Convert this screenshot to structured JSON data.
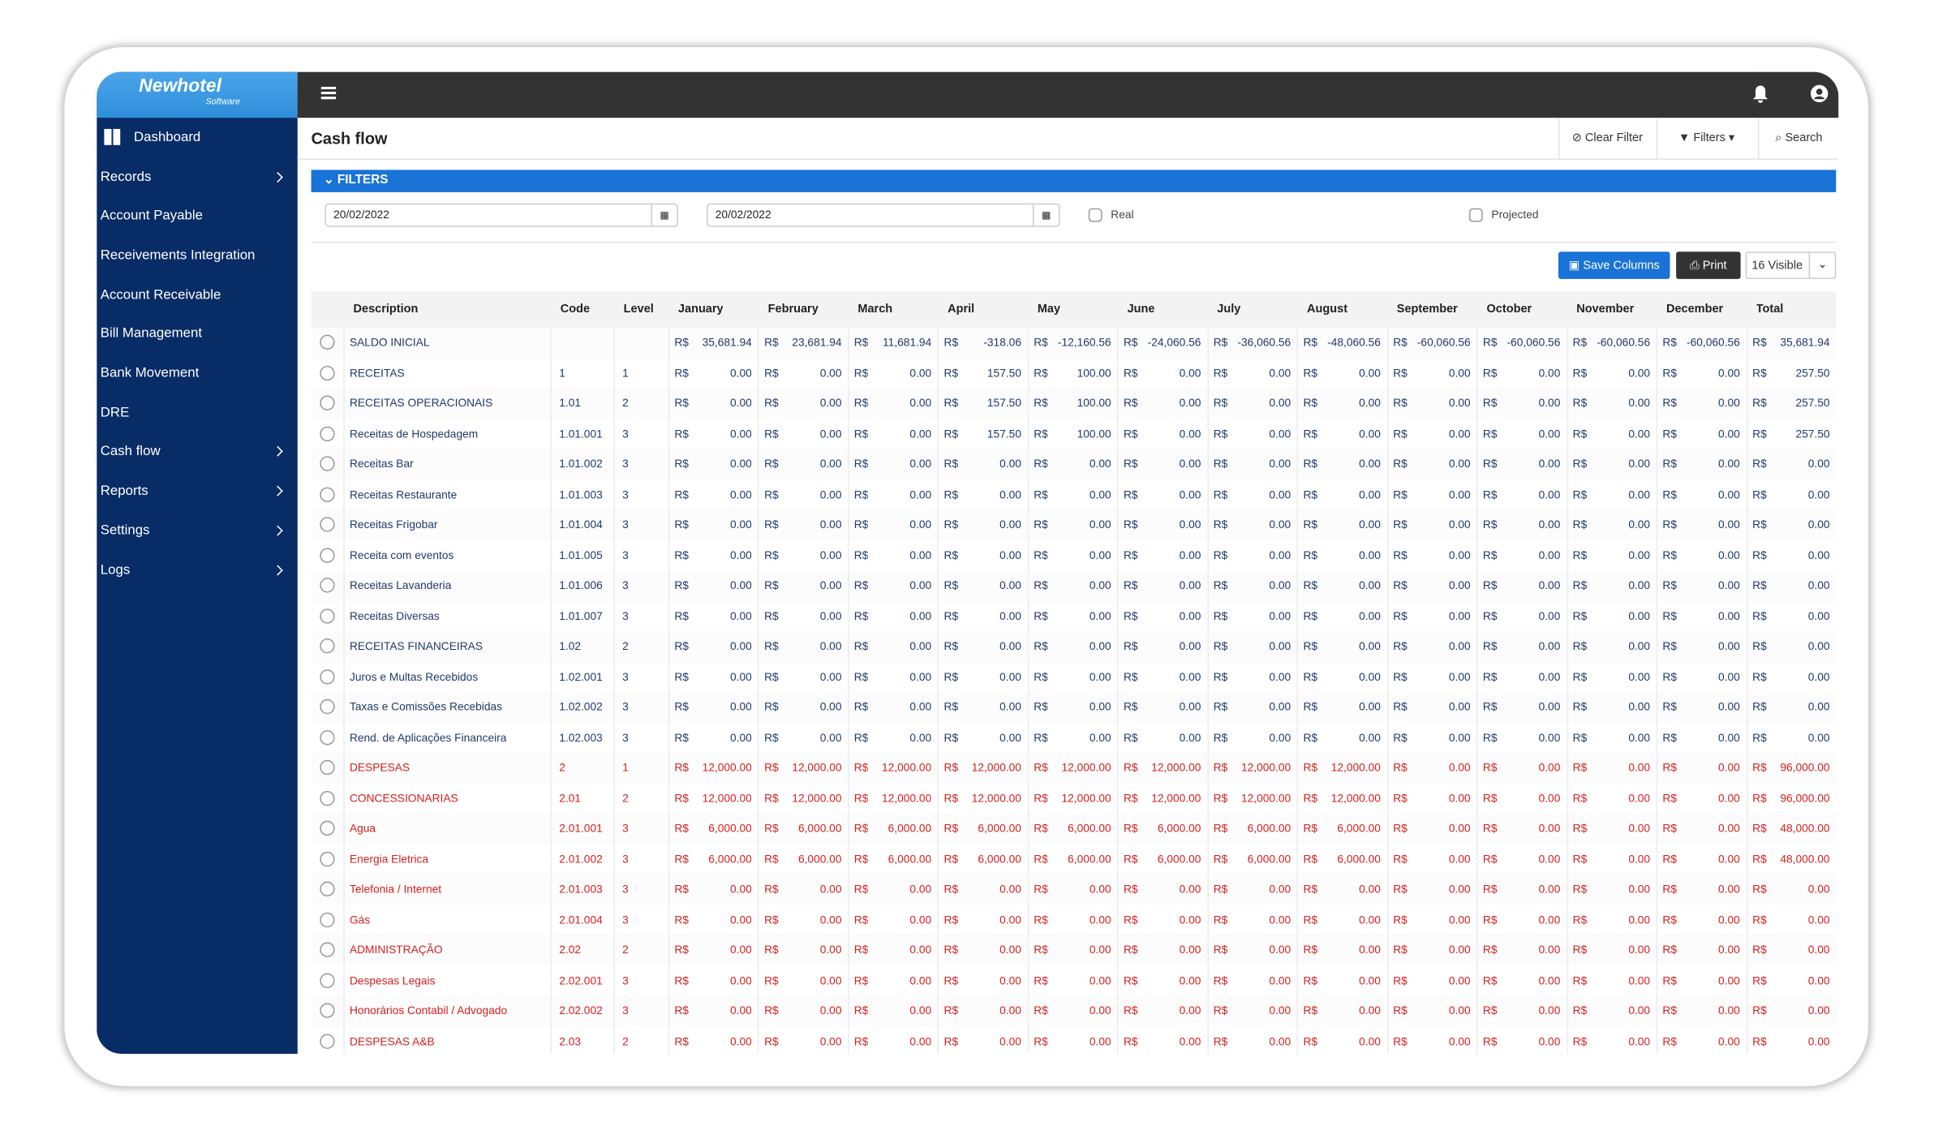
{
  "app": {
    "logo": "Newhotel",
    "logo_sub": "Software"
  },
  "sidebar": [
    "Dashboard",
    "Records",
    "Account Payable",
    "Receivements Integration",
    "Account Receivable",
    "Bill Management",
    "Bank Movement",
    "DRE",
    "Cash flow",
    "Reports",
    "Settings",
    "Logs"
  ],
  "header": {
    "title": "Cash flow",
    "buttons": [
      "Clear Filter",
      "Filters",
      "Search"
    ]
  },
  "filters": {
    "title": "FILTERS",
    "date_from": "20/02/2022",
    "date_to": "20/02/2022",
    "checkboxes": [
      "Real",
      "Projected"
    ]
  },
  "toolbar": {
    "save": "Save Columns",
    "print": "Print",
    "visible": "16 Visible"
  },
  "table": {
    "currency": "R$",
    "columns": [
      "Description",
      "Code",
      "Level",
      "January",
      "February",
      "March",
      "April",
      "May",
      "June",
      "July",
      "August",
      "September",
      "October",
      "November",
      "December",
      "Total"
    ],
    "rows": [
      {
        "description": "SALDO INICIAL",
        "code": null,
        "level": null,
        "values": [
          "35,681.94",
          "23,681.94",
          "11,681.94",
          "-318.06",
          "-12,160.56",
          "-24,060.56",
          "-36,060.56",
          "-48,060.56",
          "-60,060.56",
          "-60,060.56",
          "-60,060.56",
          "-60,060.56",
          "35,681.94"
        ]
      },
      {
        "description": "RECEITAS",
        "code": "1",
        "level": "1",
        "values": [
          "0.00",
          "0.00",
          "0.00",
          "157.50",
          "100.00",
          "0.00",
          "0.00",
          "0.00",
          "0.00",
          "0.00",
          "0.00",
          "0.00",
          "257.50"
        ]
      },
      {
        "description": "RECEITAS OPERACIONAIS",
        "code": "1.01",
        "level": "2",
        "values": [
          "0.00",
          "0.00",
          "0.00",
          "157.50",
          "100.00",
          "0.00",
          "0.00",
          "0.00",
          "0.00",
          "0.00",
          "0.00",
          "0.00",
          "257.50"
        ]
      },
      {
        "description": "Receitas de Hospedagem",
        "code": "1.01.001",
        "level": "3",
        "values": [
          "0.00",
          "0.00",
          "0.00",
          "157.50",
          "100.00",
          "0.00",
          "0.00",
          "0.00",
          "0.00",
          "0.00",
          "0.00",
          "0.00",
          "257.50"
        ]
      },
      {
        "description": "Receitas Bar",
        "code": "1.01.002",
        "level": "3",
        "values": [
          "0.00",
          "0.00",
          "0.00",
          "0.00",
          "0.00",
          "0.00",
          "0.00",
          "0.00",
          "0.00",
          "0.00",
          "0.00",
          "0.00",
          "0.00"
        ]
      },
      {
        "description": "Receitas Restaurante",
        "code": "1.01.003",
        "level": "3",
        "values": [
          "0.00",
          "0.00",
          "0.00",
          "0.00",
          "0.00",
          "0.00",
          "0.00",
          "0.00",
          "0.00",
          "0.00",
          "0.00",
          "0.00",
          "0.00"
        ]
      },
      {
        "description": "Receitas Frigobar",
        "code": "1.01.004",
        "level": "3",
        "values": [
          "0.00",
          "0.00",
          "0.00",
          "0.00",
          "0.00",
          "0.00",
          "0.00",
          "0.00",
          "0.00",
          "0.00",
          "0.00",
          "0.00",
          "0.00"
        ]
      },
      {
        "description": "Receita com eventos",
        "code": "1.01.005",
        "level": "3",
        "values": [
          "0.00",
          "0.00",
          "0.00",
          "0.00",
          "0.00",
          "0.00",
          "0.00",
          "0.00",
          "0.00",
          "0.00",
          "0.00",
          "0.00",
          "0.00"
        ]
      },
      {
        "description": "Receitas Lavanderia",
        "code": "1.01.006",
        "level": "3",
        "values": [
          "0.00",
          "0.00",
          "0.00",
          "0.00",
          "0.00",
          "0.00",
          "0.00",
          "0.00",
          "0.00",
          "0.00",
          "0.00",
          "0.00",
          "0.00"
        ]
      },
      {
        "description": "Receitas Diversas",
        "code": "1.01.007",
        "level": "3",
        "values": [
          "0.00",
          "0.00",
          "0.00",
          "0.00",
          "0.00",
          "0.00",
          "0.00",
          "0.00",
          "0.00",
          "0.00",
          "0.00",
          "0.00",
          "0.00"
        ]
      },
      {
        "description": "RECEITAS FINANCEIRAS",
        "code": "1.02",
        "level": "2",
        "values": [
          "0.00",
          "0.00",
          "0.00",
          "0.00",
          "0.00",
          "0.00",
          "0.00",
          "0.00",
          "0.00",
          "0.00",
          "0.00",
          "0.00",
          "0.00"
        ]
      },
      {
        "description": "Juros e Multas Recebidos",
        "code": "1.02.001",
        "level": "3",
        "values": [
          "0.00",
          "0.00",
          "0.00",
          "0.00",
          "0.00",
          "0.00",
          "0.00",
          "0.00",
          "0.00",
          "0.00",
          "0.00",
          "0.00",
          "0.00"
        ]
      },
      {
        "description": "Taxas e Comissões Recebidas",
        "code": "1.02.002",
        "level": "3",
        "values": [
          "0.00",
          "0.00",
          "0.00",
          "0.00",
          "0.00",
          "0.00",
          "0.00",
          "0.00",
          "0.00",
          "0.00",
          "0.00",
          "0.00",
          "0.00"
        ]
      },
      {
        "description": "Rend. de Aplicações Financeira",
        "code": "1.02.003",
        "level": "3",
        "values": [
          "0.00",
          "0.00",
          "0.00",
          "0.00",
          "0.00",
          "0.00",
          "0.00",
          "0.00",
          "0.00",
          "0.00",
          "0.00",
          "0.00",
          "0.00"
        ]
      },
      {
        "description": "DESPESAS",
        "code": "2",
        "level": "1",
        "values": [
          "12,000.00",
          "12,000.00",
          "12,000.00",
          "12,000.00",
          "12,000.00",
          "12,000.00",
          "12,000.00",
          "12,000.00",
          "0.00",
          "0.00",
          "0.00",
          "0.00",
          "96,000.00"
        ]
      },
      {
        "description": "CONCESSIONARIAS",
        "code": "2.01",
        "level": "2",
        "values": [
          "12,000.00",
          "12,000.00",
          "12,000.00",
          "12,000.00",
          "12,000.00",
          "12,000.00",
          "12,000.00",
          "12,000.00",
          "0.00",
          "0.00",
          "0.00",
          "0.00",
          "96,000.00"
        ]
      },
      {
        "description": "Agua",
        "code": "2.01.001",
        "level": "3",
        "values": [
          "6,000.00",
          "6,000.00",
          "6,000.00",
          "6,000.00",
          "6,000.00",
          "6,000.00",
          "6,000.00",
          "6,000.00",
          "0.00",
          "0.00",
          "0.00",
          "0.00",
          "48,000.00"
        ]
      },
      {
        "description": "Energia Eletrica",
        "code": "2.01.002",
        "level": "3",
        "values": [
          "6,000.00",
          "6,000.00",
          "6,000.00",
          "6,000.00",
          "6,000.00",
          "6,000.00",
          "6,000.00",
          "6,000.00",
          "0.00",
          "0.00",
          "0.00",
          "0.00",
          "48,000.00"
        ]
      },
      {
        "description": "Telefonia / Internet",
        "code": "2.01.003",
        "level": "3",
        "values": [
          "0.00",
          "0.00",
          "0.00",
          "0.00",
          "0.00",
          "0.00",
          "0.00",
          "0.00",
          "0.00",
          "0.00",
          "0.00",
          "0.00",
          "0.00"
        ]
      },
      {
        "description": "Gás",
        "code": "2.01.004",
        "level": "3",
        "values": [
          "0.00",
          "0.00",
          "0.00",
          "0.00",
          "0.00",
          "0.00",
          "0.00",
          "0.00",
          "0.00",
          "0.00",
          "0.00",
          "0.00",
          "0.00"
        ]
      },
      {
        "description": "ADMINISTRAÇÃO",
        "code": "2.02",
        "level": "2",
        "values": [
          "0.00",
          "0.00",
          "0.00",
          "0.00",
          "0.00",
          "0.00",
          "0.00",
          "0.00",
          "0.00",
          "0.00",
          "0.00",
          "0.00",
          "0.00"
        ]
      },
      {
        "description": "Despesas Legais",
        "code": "2.02.001",
        "level": "3",
        "values": [
          "0.00",
          "0.00",
          "0.00",
          "0.00",
          "0.00",
          "0.00",
          "0.00",
          "0.00",
          "0.00",
          "0.00",
          "0.00",
          "0.00",
          "0.00"
        ]
      },
      {
        "description": "Honorários Contabil / Advogado",
        "code": "2.02.002",
        "level": "3",
        "values": [
          "0.00",
          "0.00",
          "0.00",
          "0.00",
          "0.00",
          "0.00",
          "0.00",
          "0.00",
          "0.00",
          "0.00",
          "0.00",
          "0.00",
          "0.00"
        ]
      },
      {
        "description": "DESPESAS A&B",
        "code": "2.03",
        "level": "2",
        "values": [
          "0.00",
          "0.00",
          "0.00",
          "0.00",
          "0.00",
          "0.00",
          "0.00",
          "0.00",
          "0.00",
          "0.00",
          "0.00",
          "0.00",
          "0.00"
        ]
      }
    ]
  }
}
